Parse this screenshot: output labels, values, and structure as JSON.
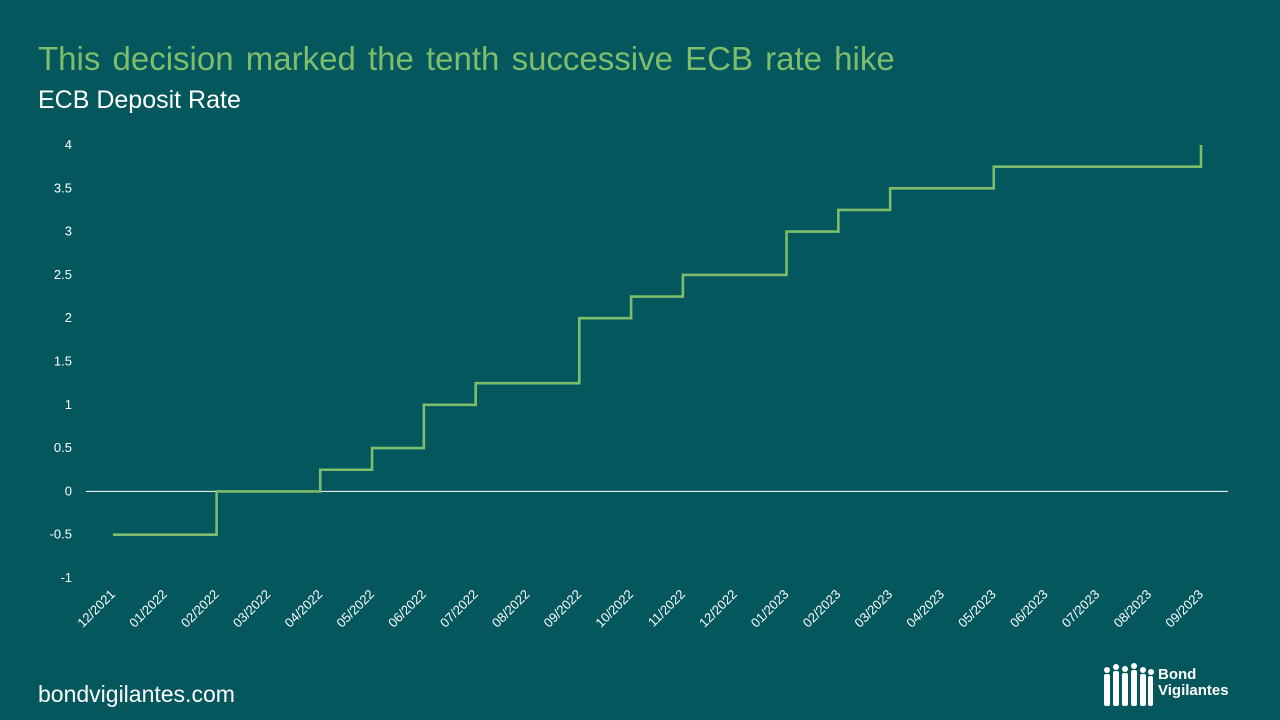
{
  "title": "This decision marked the tenth successive ECB rate hike",
  "subtitle": "ECB Deposit Rate",
  "footer": "bondvigilantes.com",
  "logo": {
    "line1": "Bond",
    "line2": "Vigilantes"
  },
  "colors": {
    "background": "#04575c",
    "title": "#7dbd6b",
    "line": "#7dbd6b",
    "axis": "#ffffff"
  },
  "chart_data": {
    "type": "line",
    "step": true,
    "title": "ECB Deposit Rate",
    "xlabel": "",
    "ylabel": "",
    "ylim": [
      -1,
      4
    ],
    "yticks": [
      -1,
      -0.5,
      0,
      0.5,
      1,
      1.5,
      2,
      2.5,
      3,
      3.5,
      4
    ],
    "ytick_labels": [
      "-1",
      "-0.5",
      "0",
      "0.5",
      "1",
      "1.5",
      "2",
      "2.5",
      "3",
      "3.5",
      "4"
    ],
    "xtick_labels": [
      "12/2021",
      "01/2022",
      "02/2022",
      "03/2022",
      "04/2022",
      "05/2022",
      "06/2022",
      "07/2022",
      "08/2022",
      "09/2022",
      "10/2022",
      "11/2022",
      "12/2022",
      "01/2023",
      "02/2023",
      "03/2023",
      "04/2023",
      "05/2023",
      "06/2023",
      "07/2023",
      "08/2023",
      "09/2023"
    ],
    "grid": false,
    "series": [
      {
        "x": [
          "12/2021",
          "02/2022",
          "04/2022",
          "05/2022",
          "06/2022",
          "07/2022",
          "09/2022",
          "10/2022",
          "11/2022",
          "01/2023",
          "02/2023",
          "03/2023",
          "05/2023",
          "09/2023"
        ],
        "values": [
          -0.5,
          0,
          0.25,
          0.5,
          1,
          1.25,
          2,
          2.25,
          2.5,
          3,
          3.25,
          3.5,
          3.75,
          4
        ]
      }
    ]
  }
}
